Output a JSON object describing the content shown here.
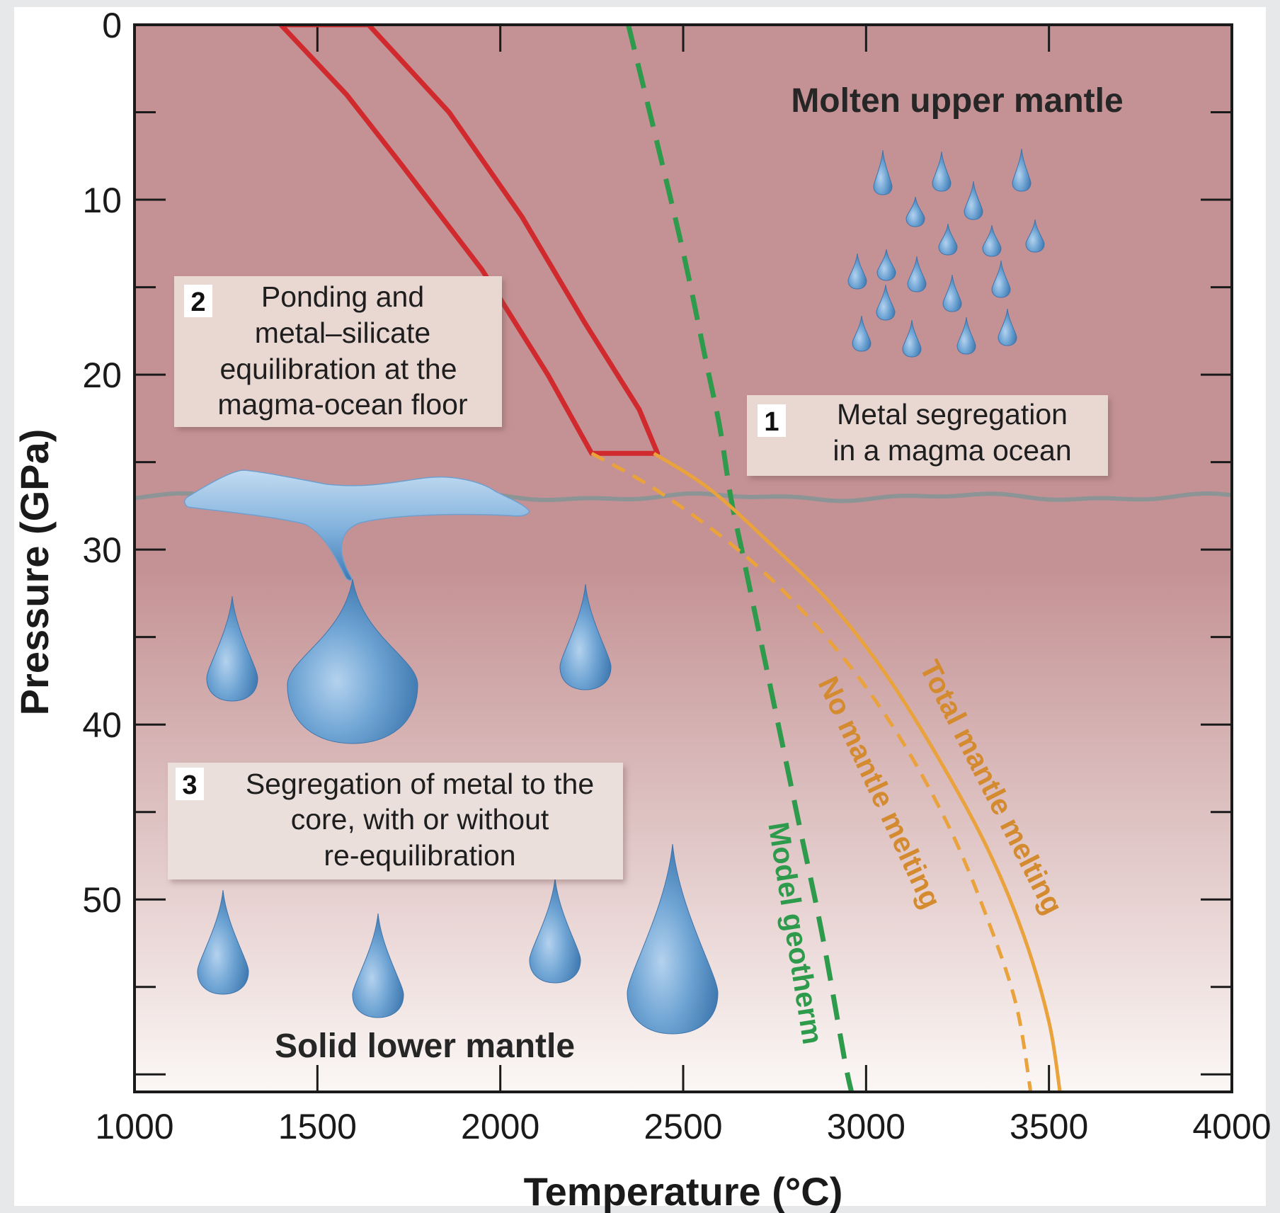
{
  "chart_data": {
    "type": "line",
    "xlabel": "Temperature (°C)",
    "ylabel": "Pressure (GPa)",
    "xlim": [
      1000,
      4000
    ],
    "ylim": [
      0,
      61
    ],
    "y_inverted": true,
    "x_ticks": [
      1000,
      1500,
      2000,
      2500,
      3000,
      3500,
      4000
    ],
    "y_ticks": [
      0,
      10,
      20,
      30,
      40,
      50
    ],
    "grid": false,
    "colors": {
      "upper_mantle": "#c49294",
      "lower_mantle": "#fbf7f5",
      "band": "#d02a2e",
      "geotherm": "#2d9a4c",
      "melting": "#eaa23c",
      "boundary": "#8c9496",
      "droplet": "#4b8ac2",
      "label_box": "#e8d5d0"
    },
    "series": [
      {
        "name": "Model geotherm",
        "style": "dashed",
        "x": [
          2350,
          2420,
          2500,
          2560,
          2600,
          2630,
          2660,
          2700,
          2760,
          2820,
          2880,
          2940,
          2960
        ],
        "y": [
          0,
          6,
          13,
          19,
          23,
          27,
          30,
          34,
          40,
          46,
          52,
          59,
          61
        ]
      },
      {
        "name": "No mantle melting",
        "style": "dashed",
        "x": [
          2250,
          2420,
          2620,
          2780,
          2950,
          3100,
          3230,
          3330,
          3410,
          3450
        ],
        "y": [
          24.5,
          26.5,
          29.5,
          32.5,
          36.5,
          41,
          46,
          51,
          56,
          61
        ]
      },
      {
        "name": "Total mantle melting",
        "style": "solid",
        "x": [
          2420,
          2570,
          2730,
          2900,
          3050,
          3200,
          3330,
          3430,
          3500,
          3530
        ],
        "y": [
          24.5,
          26.5,
          29.5,
          33,
          37,
          42,
          47,
          52,
          57,
          61
        ]
      }
    ],
    "band_outline": {
      "x": [
        1400,
        1640,
        1860,
        2060,
        2230,
        2380,
        2430,
        2250,
        2130,
        1950,
        1730,
        1580,
        1400
      ],
      "y": [
        0,
        0,
        5,
        11,
        17,
        22,
        24.5,
        24.5,
        20,
        14,
        8,
        4,
        0
      ]
    },
    "boundary_pressure": 27,
    "annotations": {
      "molten": "Molten upper mantle",
      "solid": "Solid lower mantle",
      "box1": {
        "num": "1",
        "lines": [
          "Metal segregation",
          "in a magma ocean"
        ]
      },
      "box2": {
        "num": "2",
        "lines": [
          "Ponding and",
          "metal–silicate",
          "equilibration at the",
          "magma-ocean floor"
        ]
      },
      "box3": {
        "num": "3",
        "lines": [
          "Segregation of metal to the",
          "core, with or without",
          "re-equilibration"
        ]
      }
    }
  }
}
